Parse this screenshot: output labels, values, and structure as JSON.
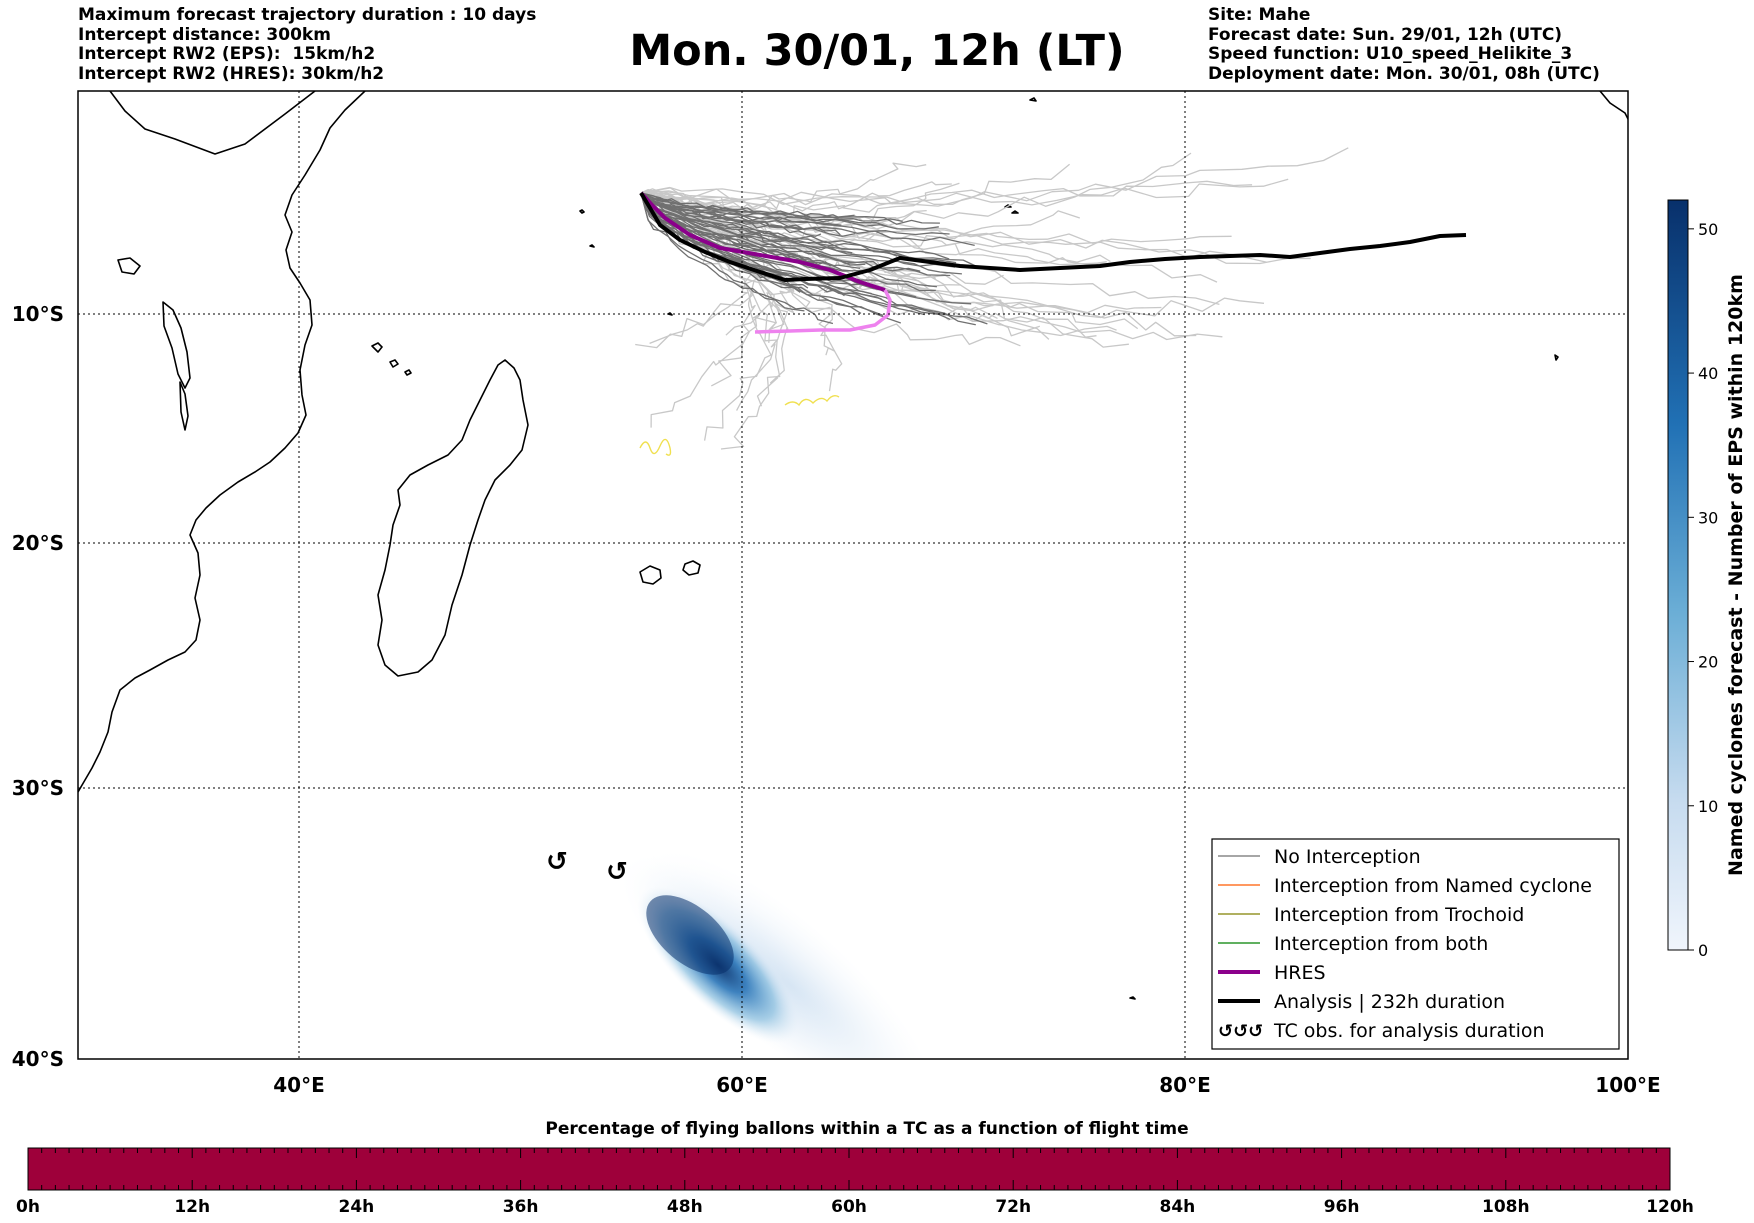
{
  "header": {
    "left_lines": [
      "Maximum forecast trajectory duration : 10 days",
      "Intercept distance: 300km",
      "Intercept RW2 (EPS):  15km/h2",
      "Intercept RW2 (HRES): 30km/h2"
    ],
    "title": "Mon. 30/01, 12h (LT)",
    "right_lines": [
      "Site: Mahe",
      "Forecast date: Sun. 29/01, 12h (UTC)",
      "Speed function: U10_speed_Helikite_3",
      "Deployment date: Mon. 30/01, 08h (UTC)"
    ]
  },
  "map": {
    "lon_ticks": [
      "40°E",
      "60°E",
      "80°E",
      "100°E"
    ],
    "lat_ticks": [
      "10°S",
      "20°S",
      "30°S",
      "40°S"
    ],
    "lon_tick_values": [
      40,
      60,
      80,
      100
    ],
    "lat_tick_values": [
      -10,
      -20,
      -30,
      -40
    ],
    "colors": {
      "no_interception": "#707070",
      "no_interception_late": "#c8c8c8",
      "named_cyclone": "#ff5a00",
      "trochoid": "#808000",
      "both": "#008000",
      "hres": "#8b008b",
      "hres_late": "#ee82ee",
      "analysis": "#000000",
      "tc_obs_yellow": "#f0e050"
    }
  },
  "legend": {
    "items": [
      {
        "label": "No Interception",
        "kind": "thin",
        "color": "#707070"
      },
      {
        "label": "Interception from Named cyclone",
        "kind": "thin",
        "color": "#ff5a00"
      },
      {
        "label": "Interception from Trochoid",
        "kind": "thin",
        "color": "#808000"
      },
      {
        "label": "Interception from both",
        "kind": "thin",
        "color": "#008000"
      },
      {
        "label": "HRES",
        "kind": "thick",
        "color": "#8b008b"
      },
      {
        "label": "Analysis | 232h duration",
        "kind": "thick",
        "color": "#000000"
      },
      {
        "label": "TC obs. for analysis duration",
        "kind": "symbol",
        "color": "#000000"
      }
    ]
  },
  "colorbar": {
    "label": "Named cyclones forecast - Number of EPS within 120km",
    "ticks": [
      "0",
      "10",
      "20",
      "30",
      "40",
      "50"
    ],
    "tick_values": [
      0,
      10,
      20,
      30,
      40,
      50
    ],
    "max": 52,
    "color_low": "#f0f5fc",
    "color_high": "#08306b"
  },
  "timebar": {
    "title": "Percentage of flying ballons within a TC as a function of flight time",
    "ticks": [
      "0h",
      "12h",
      "24h",
      "36h",
      "48h",
      "60h",
      "72h",
      "84h",
      "96h",
      "108h",
      "120h"
    ],
    "fill_color": "#9e003a"
  }
}
